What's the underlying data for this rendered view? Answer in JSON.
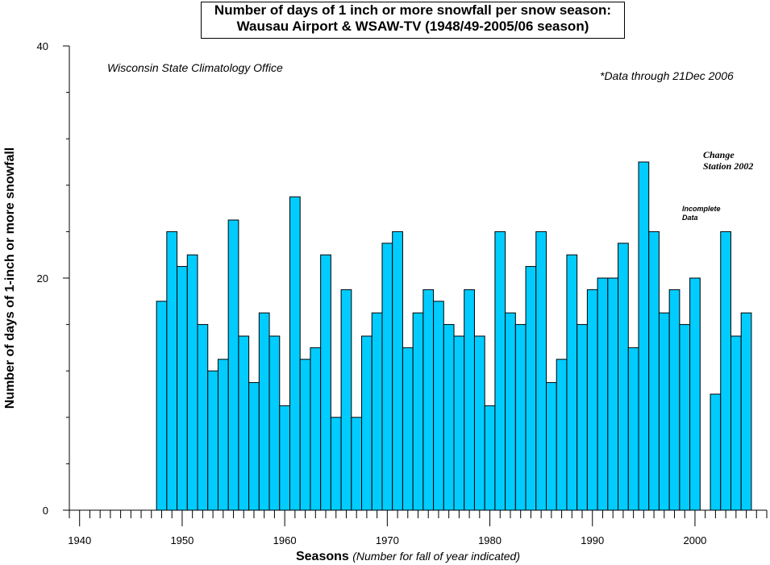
{
  "chart_data": {
    "type": "bar",
    "title": "Number of days of 1 inch or more snowfall per snow season:",
    "subtitle": "Wausau Airport & WSAW-TV (1948/49-2005/06 season)",
    "xlabel": "Seasons",
    "xlabel_note": "(Number for fall of year indicated)",
    "ylabel": "Number of days of 1-inch or more snowfall",
    "xlim": [
      1939,
      2007
    ],
    "ylim": [
      0,
      40
    ],
    "x_ticks": [
      1940,
      1950,
      1960,
      1970,
      1980,
      1990,
      2000
    ],
    "y_ticks": [
      0,
      20,
      40
    ],
    "grid": false,
    "bar_color": "#00ccff",
    "x": [
      1948,
      1949,
      1950,
      1951,
      1952,
      1953,
      1954,
      1955,
      1956,
      1957,
      1958,
      1959,
      1960,
      1961,
      1962,
      1963,
      1964,
      1965,
      1966,
      1967,
      1968,
      1969,
      1970,
      1971,
      1972,
      1973,
      1974,
      1975,
      1976,
      1977,
      1978,
      1979,
      1980,
      1981,
      1982,
      1983,
      1984,
      1985,
      1986,
      1987,
      1988,
      1989,
      1990,
      1991,
      1992,
      1993,
      1994,
      1995,
      1996,
      1997,
      1998,
      1999,
      2000,
      2002,
      2003,
      2004,
      2005
    ],
    "values": [
      18,
      24,
      21,
      22,
      16,
      12,
      13,
      25,
      15,
      11,
      17,
      15,
      9,
      27,
      13,
      14,
      22,
      8,
      19,
      8,
      15,
      17,
      23,
      24,
      14,
      17,
      19,
      18,
      16,
      15,
      19,
      15,
      9,
      24,
      17,
      16,
      21,
      24,
      11,
      13,
      22,
      16,
      19,
      20,
      20,
      23,
      14,
      30,
      24,
      17,
      19,
      16,
      20,
      10,
      24,
      15,
      17
    ],
    "annotations": {
      "source": "Wisconsin State Climatology Office",
      "data_note": "*Data through 21Dec 2006",
      "change_line1": "Change",
      "change_line2": "Station 2002",
      "incomplete_line1": "Incomplete",
      "incomplete_line2": "Data"
    }
  }
}
